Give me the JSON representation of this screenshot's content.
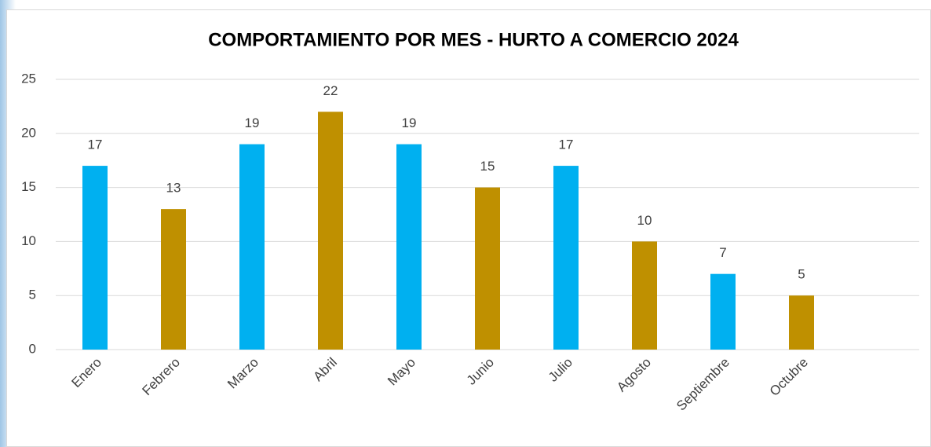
{
  "chart_data": {
    "type": "bar",
    "title": "COMPORTAMIENTO POR MES - HURTO A COMERCIO 2024",
    "categories": [
      "Enero",
      "Febrero",
      "Marzo",
      "Abril",
      "Mayo",
      "Junio",
      "Julio",
      "Agosto",
      "Septiembre",
      "Octubre",
      null
    ],
    "values": [
      17,
      13,
      19,
      22,
      19,
      15,
      17,
      10,
      7,
      5,
      null
    ],
    "colors": [
      "#00b0f0",
      "#bf9000",
      "#00b0f0",
      "#bf9000",
      "#00b0f0",
      "#bf9000",
      "#00b0f0",
      "#bf9000",
      "#00b0f0",
      "#bf9000",
      null
    ],
    "ylim": [
      0,
      25
    ],
    "yticks": [
      0,
      5,
      10,
      15,
      20,
      25
    ],
    "grid": true
  }
}
